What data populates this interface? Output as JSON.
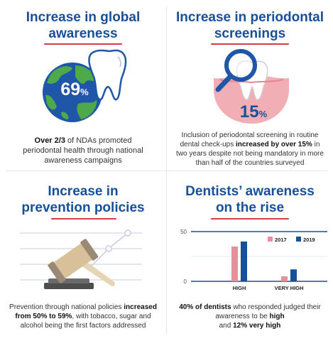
{
  "awareness": {
    "title_line1": "Increase in global",
    "title_line2": "awareness",
    "percent_value": "69",
    "percent_sign": "%",
    "caption_bold": "Over 2/3",
    "caption_rest": " of NDAs promoted periodontal health through national awareness campaigns"
  },
  "screenings": {
    "title_line1": "Increase in periodontal",
    "title_line2": "screenings",
    "percent_value": "15",
    "percent_sign": "%",
    "caption_pre": "Inclusion of periodontal screening in routine dental check-ups ",
    "caption_bold": "increased by over 15%",
    "caption_post": " in two years despite not being mandatory in more than half of the countries surveyed"
  },
  "prevention": {
    "title_line1": "Increase in",
    "title_line2": "prevention policies",
    "caption_pre": "Prevention through national policies ",
    "caption_bold1": "increased",
    "caption_bold2": "from 50% to 59%",
    "caption_post": ", with tobacco, sugar and alcohol being the first factors addressed"
  },
  "dentists": {
    "title_line1": "Dentists’ awareness",
    "title_line2": "on the rise",
    "caption_bold1": "40% of dentists",
    "caption_mid": " who responded judged their awareness to be ",
    "caption_bold2": "high",
    "caption_and": " and ",
    "caption_bold3": "12% very high"
  },
  "chart_data": {
    "type": "bar",
    "categories": [
      "HIGH",
      "VERY HIGH"
    ],
    "series": [
      {
        "name": "2017",
        "values": [
          35,
          5
        ],
        "color": "#e78f9b"
      },
      {
        "name": "2019",
        "values": [
          40,
          12
        ],
        "color": "#17509a"
      }
    ],
    "yticks": [
      "50",
      "0"
    ],
    "ylim": [
      0,
      50
    ],
    "legend": "top-right"
  },
  "colors": {
    "title_blue": "#17509a",
    "underline_red": "#d93a4a",
    "globe_blue": "#1f56a8",
    "land_green": "#4ea94b",
    "gum_pink": "#f2aeb5"
  },
  "icons": [
    "globe-with-tooth-icon",
    "magnifier-tooth-icon",
    "gavel-icon"
  ]
}
